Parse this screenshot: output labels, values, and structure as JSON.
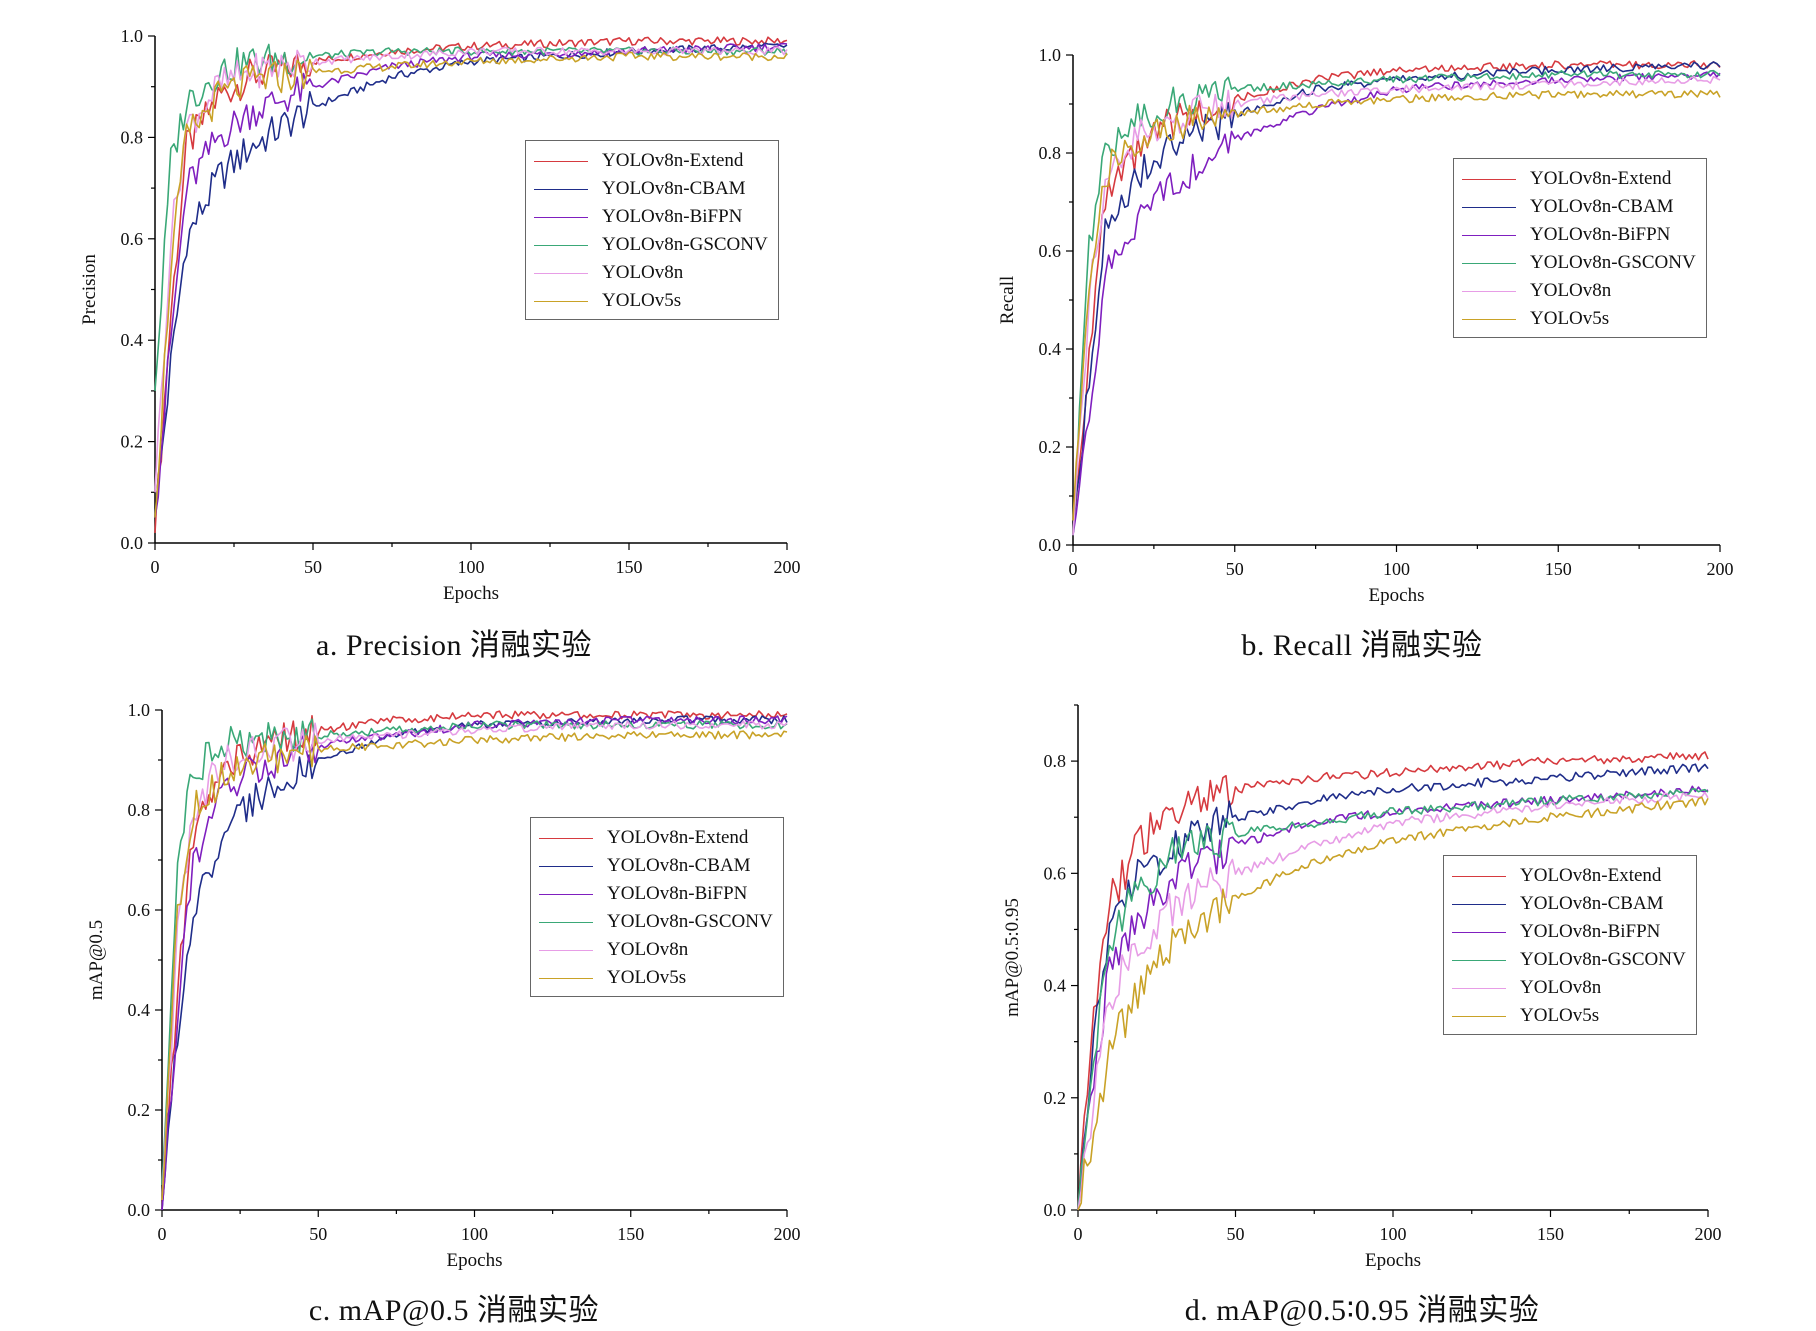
{
  "captions": [
    "a. Precision 消融实验",
    "b. Recall 消融实验",
    "c. mAP@0.5 消融实验",
    "d. mAP@0.5∶0.95 消融实验"
  ],
  "legend": [
    {
      "name": "YOLOv8n-Extend",
      "color": "#d63a3f"
    },
    {
      "name": "YOLOv8n-CBAM",
      "color": "#1f2d8a"
    },
    {
      "name": "YOLOv8n-BiFPN",
      "color": "#7f1fbf"
    },
    {
      "name": "YOLOv8n-GSCONV",
      "color": "#3aa877"
    },
    {
      "name": "YOLOv8n",
      "color": "#e79de6"
    },
    {
      "name": "YOLOv5s",
      "color": "#c9a227"
    }
  ],
  "chart_data": [
    {
      "type": "line",
      "xlabel": "Epochs",
      "ylabel": "Precision",
      "xlim": [
        0,
        200
      ],
      "ylim": [
        0,
        1.0
      ],
      "xticks": [
        "0",
        "50",
        "100",
        "150",
        "200"
      ],
      "yticks": [
        "0.0",
        "0.2",
        "0.4",
        "0.6",
        "0.8",
        "1.0"
      ],
      "legend_position": "center-right",
      "series": [
        {
          "name": "YOLOv8n-Extend",
          "x": [
            0,
            5,
            10,
            20,
            30,
            50,
            75,
            100,
            150,
            200
          ],
          "values": [
            0.02,
            0.45,
            0.78,
            0.88,
            0.92,
            0.95,
            0.97,
            0.98,
            0.99,
            0.99
          ]
        },
        {
          "name": "YOLOv8n-CBAM",
          "x": [
            0,
            5,
            10,
            20,
            30,
            50,
            75,
            100,
            150,
            200
          ],
          "values": [
            0.05,
            0.35,
            0.6,
            0.72,
            0.78,
            0.86,
            0.92,
            0.95,
            0.97,
            0.98
          ]
        },
        {
          "name": "YOLOv8n-BiFPN",
          "x": [
            0,
            5,
            10,
            20,
            30,
            50,
            75,
            100,
            150,
            200
          ],
          "values": [
            0.05,
            0.4,
            0.7,
            0.8,
            0.85,
            0.9,
            0.94,
            0.96,
            0.97,
            0.98
          ]
        },
        {
          "name": "YOLOv8n-GSCONV",
          "x": [
            0,
            5,
            10,
            20,
            30,
            50,
            75,
            100,
            150,
            200
          ],
          "values": [
            0.3,
            0.75,
            0.87,
            0.93,
            0.95,
            0.96,
            0.97,
            0.97,
            0.97,
            0.97
          ]
        },
        {
          "name": "YOLOv8n",
          "x": [
            0,
            5,
            10,
            20,
            30,
            50,
            75,
            100,
            150,
            200
          ],
          "values": [
            0.1,
            0.6,
            0.82,
            0.9,
            0.93,
            0.95,
            0.96,
            0.97,
            0.97,
            0.97
          ]
        },
        {
          "name": "YOLOv5s",
          "x": [
            0,
            5,
            10,
            20,
            30,
            50,
            75,
            100,
            150,
            200
          ],
          "values": [
            0.05,
            0.55,
            0.8,
            0.88,
            0.91,
            0.93,
            0.94,
            0.95,
            0.96,
            0.96
          ]
        }
      ]
    },
    {
      "type": "line",
      "xlabel": "Epochs",
      "ylabel": "Recall",
      "xlim": [
        0,
        200
      ],
      "ylim": [
        0,
        1.0
      ],
      "xticks": [
        "0",
        "50",
        "100",
        "150",
        "200"
      ],
      "yticks": [
        "0.0",
        "0.2",
        "0.4",
        "0.6",
        "0.8",
        "1.0"
      ],
      "legend_position": "center-right",
      "series": [
        {
          "name": "YOLOv8n-Extend",
          "x": [
            0,
            5,
            10,
            20,
            30,
            50,
            75,
            100,
            150,
            200
          ],
          "values": [
            0.02,
            0.4,
            0.7,
            0.8,
            0.86,
            0.91,
            0.95,
            0.97,
            0.98,
            0.98
          ]
        },
        {
          "name": "YOLOv8n-CBAM",
          "x": [
            0,
            5,
            10,
            20,
            30,
            50,
            75,
            100,
            150,
            200
          ],
          "values": [
            0.02,
            0.35,
            0.65,
            0.76,
            0.81,
            0.88,
            0.93,
            0.95,
            0.97,
            0.98
          ]
        },
        {
          "name": "YOLOv8n-BiFPN",
          "x": [
            0,
            5,
            10,
            20,
            30,
            50,
            75,
            100,
            150,
            200
          ],
          "values": [
            0.02,
            0.25,
            0.55,
            0.67,
            0.73,
            0.83,
            0.89,
            0.93,
            0.95,
            0.96
          ]
        },
        {
          "name": "YOLOv8n-GSCONV",
          "x": [
            0,
            5,
            10,
            20,
            30,
            50,
            75,
            100,
            150,
            200
          ],
          "values": [
            0.02,
            0.6,
            0.8,
            0.87,
            0.9,
            0.93,
            0.94,
            0.95,
            0.96,
            0.96
          ]
        },
        {
          "name": "YOLOv8n",
          "x": [
            0,
            5,
            10,
            20,
            30,
            50,
            75,
            100,
            150,
            200
          ],
          "values": [
            0.02,
            0.5,
            0.75,
            0.83,
            0.87,
            0.9,
            0.92,
            0.93,
            0.94,
            0.95
          ]
        },
        {
          "name": "YOLOv5s",
          "x": [
            0,
            5,
            10,
            20,
            30,
            50,
            75,
            100,
            150,
            200
          ],
          "values": [
            0.05,
            0.55,
            0.76,
            0.83,
            0.86,
            0.88,
            0.9,
            0.91,
            0.92,
            0.92
          ]
        }
      ]
    },
    {
      "type": "line",
      "xlabel": "Epochs",
      "ylabel": "mAP@0.5",
      "xlim": [
        0,
        200
      ],
      "ylim": [
        0,
        1.0
      ],
      "xticks": [
        "0",
        "50",
        "100",
        "150",
        "200"
      ],
      "yticks": [
        "0.0",
        "0.2",
        "0.4",
        "0.6",
        "0.8",
        "1.0"
      ],
      "legend_position": "center-right",
      "series": [
        {
          "name": "YOLOv8n-Extend",
          "x": [
            0,
            5,
            10,
            20,
            30,
            50,
            75,
            100,
            150,
            200
          ],
          "values": [
            0.0,
            0.45,
            0.75,
            0.88,
            0.93,
            0.96,
            0.98,
            0.99,
            0.99,
            0.99
          ]
        },
        {
          "name": "YOLOv8n-CBAM",
          "x": [
            0,
            5,
            10,
            20,
            30,
            50,
            75,
            100,
            150,
            200
          ],
          "values": [
            0.0,
            0.35,
            0.6,
            0.75,
            0.82,
            0.9,
            0.95,
            0.97,
            0.98,
            0.98
          ]
        },
        {
          "name": "YOLOv8n-BiFPN",
          "x": [
            0,
            5,
            10,
            20,
            30,
            50,
            75,
            100,
            150,
            200
          ],
          "values": [
            0.0,
            0.4,
            0.7,
            0.84,
            0.88,
            0.93,
            0.95,
            0.97,
            0.98,
            0.98
          ]
        },
        {
          "name": "YOLOv8n-GSCONV",
          "x": [
            0,
            5,
            10,
            20,
            30,
            50,
            75,
            100,
            150,
            200
          ],
          "values": [
            0.05,
            0.7,
            0.88,
            0.93,
            0.94,
            0.95,
            0.96,
            0.97,
            0.97,
            0.97
          ]
        },
        {
          "name": "YOLOv8n",
          "x": [
            0,
            5,
            10,
            20,
            30,
            50,
            75,
            100,
            150,
            200
          ],
          "values": [
            0.02,
            0.55,
            0.8,
            0.9,
            0.92,
            0.94,
            0.95,
            0.96,
            0.97,
            0.97
          ]
        },
        {
          "name": "YOLOv5s",
          "x": [
            0,
            5,
            10,
            20,
            30,
            50,
            75,
            100,
            150,
            200
          ],
          "values": [
            0.02,
            0.6,
            0.8,
            0.87,
            0.9,
            0.92,
            0.93,
            0.94,
            0.95,
            0.95
          ]
        }
      ]
    },
    {
      "type": "line",
      "xlabel": "Epochs",
      "ylabel": "mAP@0.5:0.95",
      "xlim": [
        0,
        200
      ],
      "ylim": [
        0,
        0.9
      ],
      "xticks": [
        "0",
        "50",
        "100",
        "150",
        "200"
      ],
      "yticks": [
        "0.0",
        "0.2",
        "0.4",
        "0.6",
        "0.8"
      ],
      "legend_position": "center-right",
      "series": [
        {
          "name": "YOLOv8n-Extend",
          "x": [
            0,
            5,
            10,
            20,
            30,
            50,
            75,
            100,
            150,
            200
          ],
          "values": [
            0.0,
            0.35,
            0.55,
            0.66,
            0.71,
            0.75,
            0.77,
            0.78,
            0.8,
            0.81
          ]
        },
        {
          "name": "YOLOv8n-CBAM",
          "x": [
            0,
            5,
            10,
            20,
            30,
            50,
            75,
            100,
            150,
            200
          ],
          "values": [
            0.0,
            0.3,
            0.5,
            0.6,
            0.65,
            0.7,
            0.73,
            0.75,
            0.77,
            0.79
          ]
        },
        {
          "name": "YOLOv8n-BiFPN",
          "x": [
            0,
            5,
            10,
            20,
            30,
            50,
            75,
            100,
            150,
            200
          ],
          "values": [
            0.0,
            0.25,
            0.42,
            0.53,
            0.59,
            0.65,
            0.69,
            0.71,
            0.73,
            0.75
          ]
        },
        {
          "name": "YOLOv8n-GSCONV",
          "x": [
            0,
            5,
            10,
            20,
            30,
            50,
            75,
            100,
            150,
            200
          ],
          "values": [
            0.0,
            0.28,
            0.48,
            0.58,
            0.63,
            0.67,
            0.69,
            0.71,
            0.73,
            0.745
          ]
        },
        {
          "name": "YOLOv8n",
          "x": [
            0,
            5,
            10,
            20,
            30,
            50,
            75,
            100,
            150,
            200
          ],
          "values": [
            0.0,
            0.2,
            0.38,
            0.48,
            0.54,
            0.6,
            0.65,
            0.69,
            0.72,
            0.74
          ]
        },
        {
          "name": "YOLOv5s",
          "x": [
            0,
            5,
            10,
            20,
            30,
            50,
            75,
            100,
            150,
            200
          ],
          "values": [
            0.0,
            0.15,
            0.28,
            0.4,
            0.48,
            0.56,
            0.62,
            0.66,
            0.7,
            0.73
          ]
        }
      ]
    }
  ]
}
